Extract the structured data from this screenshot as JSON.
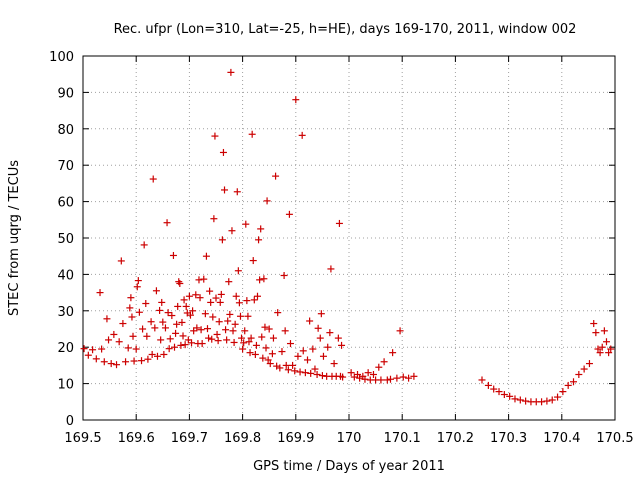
{
  "chart_data": {
    "type": "scatter",
    "title": "Rec. ufpr (Lon=310, Lat=-25, h=HE), days 169-170, 2011, window 002",
    "xlabel": "GPS time / Days of year 2011",
    "ylabel": "STEC from uqrg / TECUs",
    "xlim": [
      169.5,
      170.5
    ],
    "ylim": [
      0,
      100
    ],
    "xticks": [
      "169.5",
      "169.6",
      "169.7",
      "169.8",
      "169.9",
      "170",
      "170.1",
      "170.2",
      "170.3",
      "170.4",
      "170.5"
    ],
    "yticks": [
      "0",
      "10",
      "20",
      "30",
      "40",
      "50",
      "60",
      "70",
      "80",
      "90",
      "100"
    ],
    "grid": true,
    "marker": "+",
    "color": "#cc0000",
    "series": [
      {
        "name": "STEC",
        "points": [
          [
            169.502,
            19.6
          ],
          [
            169.51,
            17.8
          ],
          [
            169.518,
            19.3
          ],
          [
            169.525,
            16.8
          ],
          [
            169.532,
            35.0
          ],
          [
            169.535,
            19.5
          ],
          [
            169.54,
            16.0
          ],
          [
            169.545,
            27.8
          ],
          [
            169.548,
            22.0
          ],
          [
            169.553,
            15.5
          ],
          [
            169.558,
            23.5
          ],
          [
            169.563,
            15.2
          ],
          [
            169.568,
            21.5
          ],
          [
            169.572,
            43.7
          ],
          [
            169.575,
            26.5
          ],
          [
            169.58,
            16.0
          ],
          [
            169.585,
            19.8
          ],
          [
            169.588,
            30.8
          ],
          [
            169.59,
            33.6
          ],
          [
            169.592,
            28.3
          ],
          [
            169.594,
            23.0
          ],
          [
            169.596,
            16.2
          ],
          [
            169.6,
            19.5
          ],
          [
            169.602,
            36.6
          ],
          [
            169.604,
            38.3
          ],
          [
            169.606,
            29.6
          ],
          [
            169.61,
            16.3
          ],
          [
            169.612,
            25.0
          ],
          [
            169.615,
            48.1
          ],
          [
            169.618,
            32.0
          ],
          [
            169.62,
            23.0
          ],
          [
            169.622,
            16.7
          ],
          [
            169.628,
            27.0
          ],
          [
            169.63,
            18.0
          ],
          [
            169.632,
            66.2
          ],
          [
            169.635,
            25.3
          ],
          [
            169.638,
            35.5
          ],
          [
            169.64,
            17.5
          ],
          [
            169.644,
            30.1
          ],
          [
            169.646,
            22.0
          ],
          [
            169.648,
            32.3
          ],
          [
            169.65,
            26.9
          ],
          [
            169.652,
            18.0
          ],
          [
            169.655,
            25.3
          ],
          [
            169.658,
            54.2
          ],
          [
            169.66,
            29.5
          ],
          [
            169.662,
            19.6
          ],
          [
            169.664,
            22.3
          ],
          [
            169.667,
            28.7
          ],
          [
            169.67,
            45.2
          ],
          [
            169.672,
            20.0
          ],
          [
            169.674,
            23.8
          ],
          [
            169.676,
            26.3
          ],
          [
            169.678,
            31.2
          ],
          [
            169.68,
            38.0
          ],
          [
            169.682,
            37.5
          ],
          [
            169.684,
            20.5
          ],
          [
            169.686,
            26.8
          ],
          [
            169.688,
            23.1
          ],
          [
            169.69,
            33.0
          ],
          [
            169.692,
            20.7
          ],
          [
            169.694,
            31.2
          ],
          [
            169.696,
            29.4
          ],
          [
            169.698,
            22.0
          ],
          [
            169.7,
            34.0
          ],
          [
            169.702,
            28.8
          ],
          [
            169.704,
            21.2
          ],
          [
            169.706,
            30.0
          ],
          [
            169.708,
            24.5
          ],
          [
            169.712,
            34.4
          ],
          [
            169.714,
            25.3
          ],
          [
            169.716,
            21.0
          ],
          [
            169.718,
            38.5
          ],
          [
            169.72,
            33.6
          ],
          [
            169.722,
            24.8
          ],
          [
            169.724,
            21.0
          ],
          [
            169.727,
            38.7
          ],
          [
            169.73,
            29.2
          ],
          [
            169.732,
            45.0
          ],
          [
            169.734,
            25.1
          ],
          [
            169.736,
            22.5
          ],
          [
            169.738,
            35.4
          ],
          [
            169.74,
            32.3
          ],
          [
            169.742,
            22.2
          ],
          [
            169.744,
            28.3
          ],
          [
            169.746,
            55.3
          ],
          [
            169.748,
            78.0
          ],
          [
            169.75,
            33.5
          ],
          [
            169.752,
            23.5
          ],
          [
            169.754,
            21.8
          ],
          [
            169.756,
            27.0
          ],
          [
            169.758,
            32.3
          ],
          [
            169.76,
            34.5
          ],
          [
            169.762,
            49.5
          ],
          [
            169.764,
            73.5
          ],
          [
            169.766,
            63.2
          ],
          [
            169.768,
            24.8
          ],
          [
            169.77,
            22.0
          ],
          [
            169.772,
            27.2
          ],
          [
            169.774,
            38.0
          ],
          [
            169.776,
            29.0
          ],
          [
            169.778,
            95.5
          ],
          [
            169.78,
            52.0
          ],
          [
            169.782,
            24.5
          ],
          [
            169.784,
            21.3
          ],
          [
            169.786,
            26.3
          ],
          [
            169.788,
            34.0
          ],
          [
            169.79,
            62.7
          ],
          [
            169.792,
            41.0
          ],
          [
            169.794,
            32.2
          ],
          [
            169.796,
            28.5
          ],
          [
            169.798,
            22.5
          ],
          [
            169.8,
            19.5
          ],
          [
            169.802,
            21.2
          ],
          [
            169.804,
            24.5
          ],
          [
            169.806,
            53.8
          ],
          [
            169.808,
            32.8
          ],
          [
            169.81,
            28.5
          ],
          [
            169.812,
            21.5
          ],
          [
            169.814,
            18.5
          ],
          [
            169.816,
            22.5
          ],
          [
            169.818,
            78.5
          ],
          [
            169.82,
            43.8
          ],
          [
            169.822,
            33.0
          ],
          [
            169.824,
            18.0
          ],
          [
            169.826,
            20.5
          ],
          [
            169.828,
            34.0
          ],
          [
            169.83,
            49.5
          ],
          [
            169.832,
            38.5
          ],
          [
            169.834,
            52.5
          ],
          [
            169.836,
            22.8
          ],
          [
            169.838,
            17.0
          ],
          [
            169.84,
            38.8
          ],
          [
            169.842,
            25.5
          ],
          [
            169.844,
            19.8
          ],
          [
            169.846,
            60.2
          ],
          [
            169.848,
            16.5
          ],
          [
            169.85,
            25.0
          ],
          [
            169.852,
            15.5
          ],
          [
            169.856,
            18.2
          ],
          [
            169.858,
            22.5
          ],
          [
            169.862,
            67.0
          ],
          [
            169.864,
            14.8
          ],
          [
            169.866,
            29.5
          ],
          [
            169.87,
            14.3
          ],
          [
            169.874,
            18.8
          ],
          [
            169.878,
            39.7
          ],
          [
            169.88,
            24.5
          ],
          [
            169.882,
            15.0
          ],
          [
            169.886,
            13.8
          ],
          [
            169.888,
            56.5
          ],
          [
            169.89,
            21.0
          ],
          [
            169.894,
            15.0
          ],
          [
            169.898,
            13.5
          ],
          [
            169.9,
            88.0
          ],
          [
            169.904,
            17.5
          ],
          [
            169.908,
            13.2
          ],
          [
            169.912,
            78.2
          ],
          [
            169.914,
            19.0
          ],
          [
            169.918,
            13.0
          ],
          [
            169.922,
            16.5
          ],
          [
            169.926,
            27.2
          ],
          [
            169.928,
            12.8
          ],
          [
            169.932,
            19.5
          ],
          [
            169.936,
            14.0
          ],
          [
            169.94,
            12.5
          ],
          [
            169.942,
            25.2
          ],
          [
            169.946,
            22.5
          ],
          [
            169.948,
            29.2
          ],
          [
            169.95,
            12.2
          ],
          [
            169.952,
            17.5
          ],
          [
            169.958,
            12.0
          ],
          [
            169.96,
            20.0
          ],
          [
            169.964,
            24.0
          ],
          [
            169.966,
            41.5
          ],
          [
            169.968,
            12.0
          ],
          [
            169.972,
            15.5
          ],
          [
            169.976,
            12.0
          ],
          [
            169.98,
            22.5
          ],
          [
            169.982,
            54.0
          ],
          [
            169.984,
            12.0
          ],
          [
            169.986,
            20.5
          ],
          [
            169.988,
            11.8
          ],
          [
            170.004,
            13.0
          ],
          [
            170.01,
            11.8
          ],
          [
            170.016,
            12.5
          ],
          [
            170.02,
            11.5
          ],
          [
            170.026,
            12.0
          ],
          [
            170.03,
            11.2
          ],
          [
            170.036,
            13.0
          ],
          [
            170.04,
            11.0
          ],
          [
            170.046,
            12.5
          ],
          [
            170.05,
            11.0
          ],
          [
            170.056,
            14.5
          ],
          [
            170.06,
            11.0
          ],
          [
            170.066,
            16.0
          ],
          [
            170.072,
            11.0
          ],
          [
            170.078,
            11.2
          ],
          [
            170.082,
            18.5
          ],
          [
            170.09,
            11.5
          ],
          [
            170.096,
            24.5
          ],
          [
            170.102,
            11.8
          ],
          [
            170.112,
            11.5
          ],
          [
            170.122,
            12.0
          ],
          [
            170.25,
            11.0
          ],
          [
            170.262,
            9.5
          ],
          [
            170.272,
            8.5
          ],
          [
            170.282,
            7.8
          ],
          [
            170.292,
            7.0
          ],
          [
            170.302,
            6.5
          ],
          [
            170.312,
            5.8
          ],
          [
            170.322,
            5.5
          ],
          [
            170.332,
            5.2
          ],
          [
            170.342,
            5.0
          ],
          [
            170.352,
            5.0
          ],
          [
            170.362,
            5.0
          ],
          [
            170.372,
            5.2
          ],
          [
            170.382,
            5.5
          ],
          [
            170.392,
            6.3
          ],
          [
            170.402,
            7.8
          ],
          [
            170.412,
            9.5
          ],
          [
            170.422,
            10.5
          ],
          [
            170.432,
            12.5
          ],
          [
            170.442,
            14.0
          ],
          [
            170.452,
            15.5
          ],
          [
            170.46,
            26.5
          ],
          [
            170.464,
            24.0
          ],
          [
            170.468,
            19.5
          ],
          [
            170.472,
            18.5
          ],
          [
            170.476,
            20.0
          ],
          [
            170.48,
            24.5
          ],
          [
            170.484,
            21.5
          ],
          [
            170.488,
            18.5
          ],
          [
            170.492,
            19.5
          ]
        ]
      }
    ]
  }
}
